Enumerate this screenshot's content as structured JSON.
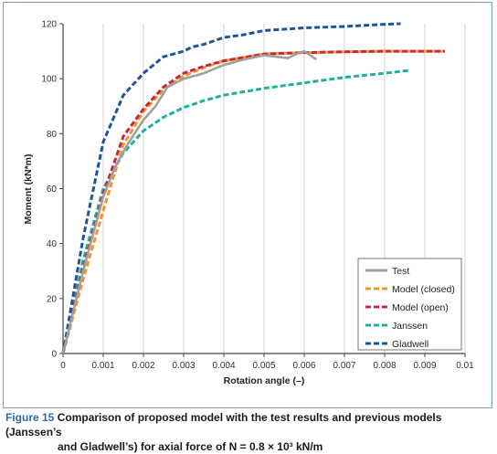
{
  "chart_data": {
    "type": "line",
    "xlabel": "Rotation angle (–)",
    "ylabel": "Moment (kN*m)",
    "xlim": [
      0,
      0.01
    ],
    "ylim": [
      0,
      120
    ],
    "x_ticks": [
      "0",
      "0.001",
      "0.002",
      "0.003",
      "0.004",
      "0.005",
      "0.006",
      "0.007",
      "0.008",
      "0.009",
      "0.01"
    ],
    "y_ticks": [
      "0",
      "20",
      "40",
      "60",
      "80",
      "100",
      "120"
    ],
    "grid": "vertical",
    "legend_position": "bottom-right",
    "series": [
      {
        "name": "Test",
        "color": "#a0a0a0",
        "style": "solid",
        "x": [
          0,
          0.0005,
          0.001,
          0.0013,
          0.0016,
          0.002,
          0.0023,
          0.0026,
          0.003,
          0.0035,
          0.004,
          0.0045,
          0.005,
          0.0053,
          0.0056,
          0.0058,
          0.006,
          0.0062,
          0.0063
        ],
        "y": [
          0,
          30,
          57,
          68,
          76,
          85,
          90,
          97,
          100,
          102,
          105,
          107,
          108.5,
          108,
          107.5,
          109,
          110,
          108,
          107
        ]
      },
      {
        "name": "Model (closed)",
        "color": "#f0962d",
        "style": "dashed",
        "x": [
          0,
          0.0005,
          0.001,
          0.0015,
          0.002,
          0.0025,
          0.003,
          0.0035,
          0.004,
          0.005,
          0.006,
          0.007,
          0.008,
          0.0095
        ],
        "y": [
          0,
          27,
          52,
          76,
          88,
          96,
          101,
          104,
          106.5,
          109,
          109.5,
          109.8,
          110,
          110
        ]
      },
      {
        "name": "Model (open)",
        "color": "#c8283c",
        "style": "dashed",
        "x": [
          0,
          0.0005,
          0.001,
          0.0015,
          0.002,
          0.0025,
          0.003,
          0.0035,
          0.004,
          0.005,
          0.006,
          0.007,
          0.008,
          0.0095
        ],
        "y": [
          0,
          31,
          58,
          79,
          89,
          97,
          102,
          104.5,
          106.5,
          109,
          109.5,
          109.8,
          110,
          110
        ]
      },
      {
        "name": "Janssen",
        "color": "#23b09b",
        "style": "dashed",
        "x": [
          0,
          0.0005,
          0.001,
          0.0015,
          0.002,
          0.0025,
          0.003,
          0.0035,
          0.004,
          0.005,
          0.006,
          0.007,
          0.008,
          0.0086
        ],
        "y": [
          0,
          34,
          60,
          73,
          81,
          86,
          89.5,
          92,
          94,
          96.5,
          98.5,
          100.5,
          102,
          103
        ]
      },
      {
        "name": "Gladwell",
        "color": "#1f5597",
        "style": "dashed",
        "x": [
          0,
          0.0005,
          0.001,
          0.0015,
          0.002,
          0.0025,
          0.003,
          0.0032,
          0.0035,
          0.004,
          0.0045,
          0.005,
          0.0055,
          0.006,
          0.007,
          0.008,
          0.0084
        ],
        "y": [
          0,
          42,
          77,
          94,
          102,
          108,
          110,
          111.5,
          112.5,
          115,
          116,
          117.5,
          118,
          118.5,
          119,
          119.8,
          120
        ]
      }
    ]
  },
  "caption": {
    "lead": "Figure 15",
    "line1": " Comparison of proposed model with the test results and previous models (Janssen’s",
    "line2": "and Gladwell’s) for axial force of N = 0.8 × 10³ kN/m"
  }
}
